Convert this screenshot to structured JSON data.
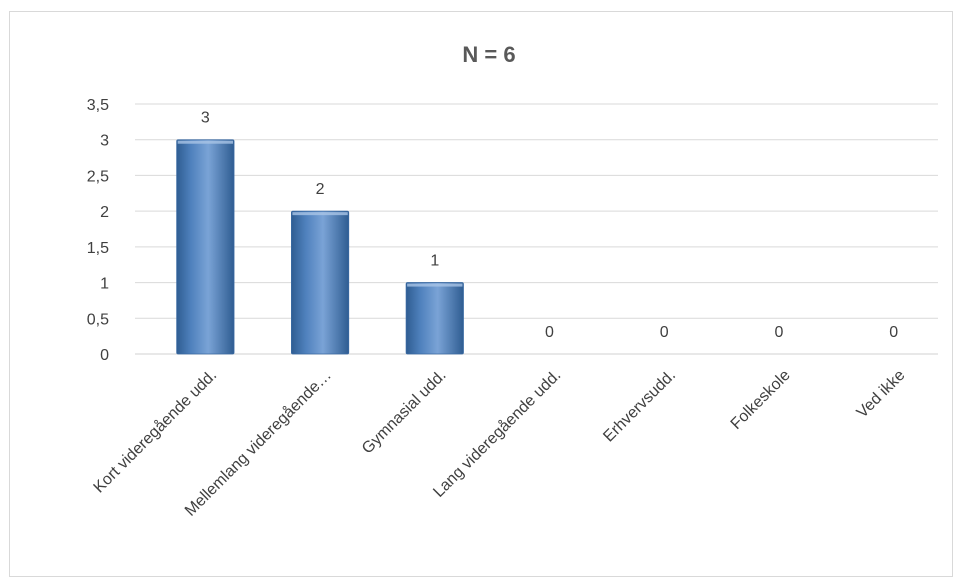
{
  "chart_data": {
    "type": "bar",
    "title": "N = 6",
    "categories": [
      "Kort videregående udd.",
      "Mellemlang videregående…",
      "Gymnasial udd.",
      "Lang videregående udd.",
      "Erhvervsudd.",
      "Folkeskole",
      "Ved ikke"
    ],
    "values": [
      3,
      2,
      1,
      0,
      0,
      0,
      0
    ],
    "data_labels": [
      "3",
      "2",
      "1",
      "0",
      "0",
      "0",
      "0"
    ],
    "y_ticks": [
      "0",
      "0,5",
      "1",
      "1,5",
      "2",
      "2,5",
      "3",
      "3,5"
    ],
    "ylim": [
      0,
      3.5
    ],
    "xlabel": "",
    "ylabel": "",
    "grid": true,
    "legend": "none",
    "colors": {
      "bar": "#4f81bd",
      "bar_light": "#7aa3d6",
      "bar_dark": "#2f5d92",
      "grid": "#d9d9d9",
      "text": "#404040",
      "title": "#595959"
    }
  }
}
